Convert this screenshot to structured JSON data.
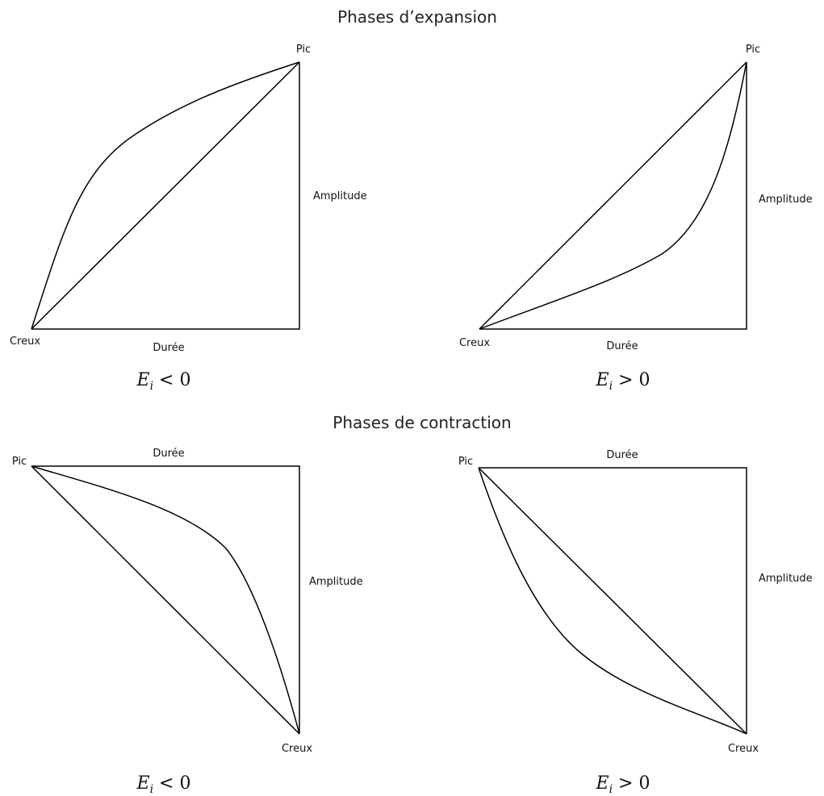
{
  "sections": [
    {
      "title": "Phases d’expansion",
      "panels": [
        {
          "peak_label": "Pic",
          "trough_label": "Creux",
          "duration_label": "Durée",
          "amplitude_label": "Amplitude",
          "formula": {
            "var": "E",
            "sub": "i",
            "rest": " < 0"
          }
        },
        {
          "peak_label": "Pic",
          "trough_label": "Creux",
          "duration_label": "Durée",
          "amplitude_label": "Amplitude",
          "formula": {
            "var": "E",
            "sub": "i",
            "rest": " > 0"
          }
        }
      ]
    },
    {
      "title": "Phases de contraction",
      "panels": [
        {
          "peak_label": "Pic",
          "trough_label": "Creux",
          "duration_label": "Durée",
          "amplitude_label": "Amplitude",
          "formula": {
            "var": "E",
            "sub": "i",
            "rest": " < 0"
          }
        },
        {
          "peak_label": "Pic",
          "trough_label": "Creux",
          "duration_label": "Durée",
          "amplitude_label": "Amplitude",
          "formula": {
            "var": "E",
            "sub": "i",
            "rest": " > 0"
          }
        }
      ]
    }
  ]
}
